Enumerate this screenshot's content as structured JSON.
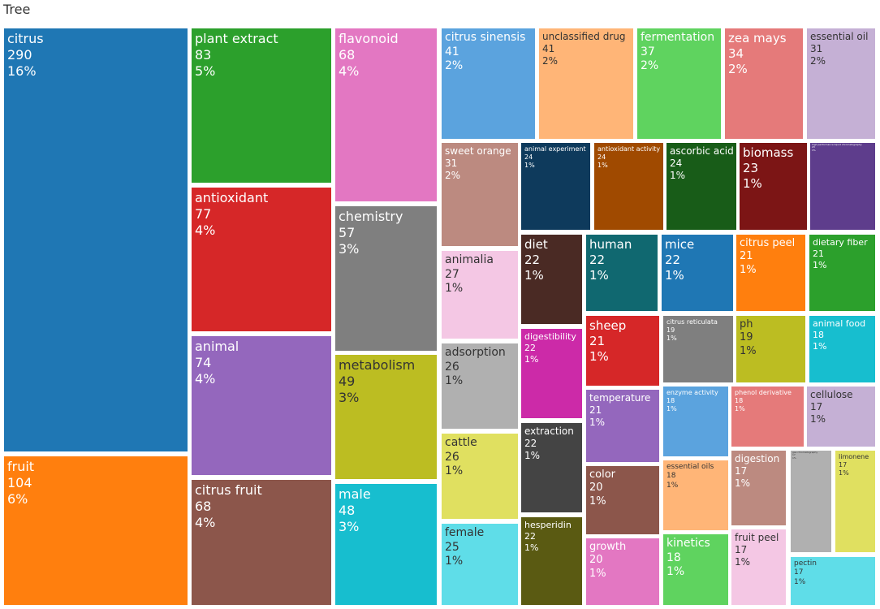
{
  "chart_data": {
    "type": "treemap",
    "title": "Tree",
    "items": [
      {
        "name": "citrus",
        "value": 290,
        "percent": "16%",
        "color": "#1f77b4"
      },
      {
        "name": "fruit",
        "value": 104,
        "percent": "6%",
        "color": "#ff7f0e"
      },
      {
        "name": "plant extract",
        "value": 83,
        "percent": "5%",
        "color": "#2ca02c"
      },
      {
        "name": "antioxidant",
        "value": 77,
        "percent": "4%",
        "color": "#d62728"
      },
      {
        "name": "animal",
        "value": 74,
        "percent": "4%",
        "color": "#9467bd"
      },
      {
        "name": "citrus fruit",
        "value": 68,
        "percent": "4%",
        "color": "#8c564b"
      },
      {
        "name": "flavonoid",
        "value": 68,
        "percent": "4%",
        "color": "#e377c2"
      },
      {
        "name": "chemistry",
        "value": 57,
        "percent": "3%",
        "color": "#7f7f7f"
      },
      {
        "name": "metabolism",
        "value": 49,
        "percent": "3%",
        "color": "#bcbd22"
      },
      {
        "name": "male",
        "value": 48,
        "percent": "3%",
        "color": "#17becf"
      },
      {
        "name": "citrus sinensis",
        "value": 41,
        "percent": "2%",
        "color": "#5ba3de"
      },
      {
        "name": "unclassified drug",
        "value": 41,
        "percent": "2%",
        "color": "#ffb577"
      },
      {
        "name": "fermentation",
        "value": 37,
        "percent": "2%",
        "color": "#5fd35f"
      },
      {
        "name": "zea mays",
        "value": 34,
        "percent": "2%",
        "color": "#e57a7a"
      },
      {
        "name": "essential oil",
        "value": 31,
        "percent": "2%",
        "color": "#c5b0d5"
      },
      {
        "name": "sweet orange",
        "value": 31,
        "percent": "2%",
        "color": "#bc8a80"
      },
      {
        "name": "animalia",
        "value": 27,
        "percent": "1%",
        "color": "#f4c7e4"
      },
      {
        "name": "adsorption",
        "value": 26,
        "percent": "1%",
        "color": "#b0b0b0"
      },
      {
        "name": "cattle",
        "value": 26,
        "percent": "1%",
        "color": "#e0e060"
      },
      {
        "name": "female",
        "value": 25,
        "percent": "1%",
        "color": "#5fdde8"
      },
      {
        "name": "animal experiment",
        "value": 24,
        "percent": "1%",
        "color": "#0e3a5c"
      },
      {
        "name": "antioxidant activity",
        "value": 24,
        "percent": "1%",
        "color": "#a04a00"
      },
      {
        "name": "ascorbic acid",
        "value": 24,
        "percent": "1%",
        "color": "#185c18"
      },
      {
        "name": "biomass",
        "value": 23,
        "percent": "1%",
        "color": "#7c1515"
      },
      {
        "name": "high performance liquid chromatography",
        "value": 23,
        "percent": "1%",
        "color": "#5e3d8c"
      },
      {
        "name": "diet",
        "value": 22,
        "percent": "1%",
        "color": "#4a2a24"
      },
      {
        "name": "human",
        "value": 22,
        "percent": "1%",
        "color": "#106870"
      },
      {
        "name": "mice",
        "value": 22,
        "percent": "1%",
        "color": "#1f77b4"
      },
      {
        "name": "digestibility",
        "value": 22,
        "percent": "1%",
        "color": "#cc2aa8"
      },
      {
        "name": "extraction",
        "value": 22,
        "percent": "1%",
        "color": "#444444"
      },
      {
        "name": "hesperidin",
        "value": 22,
        "percent": "1%",
        "color": "#5a5a12"
      },
      {
        "name": "citrus peel",
        "value": 21,
        "percent": "1%",
        "color": "#ff7f0e"
      },
      {
        "name": "dietary fiber",
        "value": 21,
        "percent": "1%",
        "color": "#2ca02c"
      },
      {
        "name": "sheep",
        "value": 21,
        "percent": "1%",
        "color": "#d62728"
      },
      {
        "name": "temperature",
        "value": 21,
        "percent": "1%",
        "color": "#9467bd"
      },
      {
        "name": "color",
        "value": 20,
        "percent": "1%",
        "color": "#8c564b"
      },
      {
        "name": "growth",
        "value": 20,
        "percent": "1%",
        "color": "#e377c2"
      },
      {
        "name": "citrus reticulata",
        "value": 19,
        "percent": "1%",
        "color": "#7f7f7f"
      },
      {
        "name": "ph",
        "value": 19,
        "percent": "1%",
        "color": "#bcbd22"
      },
      {
        "name": "animal food",
        "value": 18,
        "percent": "1%",
        "color": "#17becf"
      },
      {
        "name": "enzyme activity",
        "value": 18,
        "percent": "1%",
        "color": "#5ba3de"
      },
      {
        "name": "essential oils",
        "value": 18,
        "percent": "1%",
        "color": "#ffb577"
      },
      {
        "name": "kinetics",
        "value": 18,
        "percent": "1%",
        "color": "#5fd35f"
      },
      {
        "name": "phenol derivative",
        "value": 18,
        "percent": "1%",
        "color": "#e57a7a"
      },
      {
        "name": "cellulose",
        "value": 17,
        "percent": "1%",
        "color": "#c5b0d5"
      },
      {
        "name": "digestion",
        "value": 17,
        "percent": "1%",
        "color": "#bc8a80"
      },
      {
        "name": "fruit peel",
        "value": 17,
        "percent": "1%",
        "color": "#f4c7e4"
      },
      {
        "name": "gas chromatography",
        "value": 17,
        "percent": "1%",
        "color": "#b0b0b0"
      },
      {
        "name": "limonene",
        "value": 17,
        "percent": "1%",
        "color": "#e0e060"
      },
      {
        "name": "pectin",
        "value": 17,
        "percent": "1%",
        "color": "#5fdde8"
      }
    ]
  }
}
